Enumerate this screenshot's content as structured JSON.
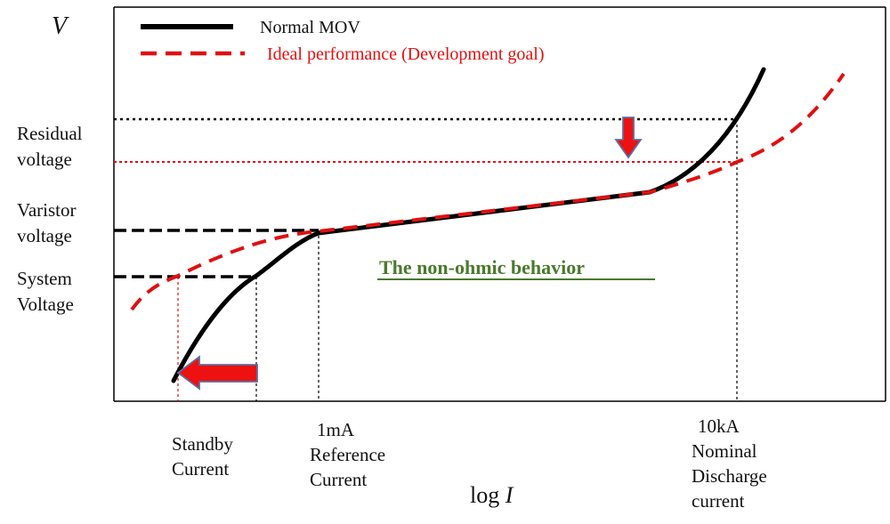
{
  "legend": {
    "normal": "Normal MOV",
    "ideal": "Ideal performance (Development goal)"
  },
  "axis": {
    "y_var": "V",
    "x_label_prefix": "log ",
    "x_label_var": "I"
  },
  "y_labels": {
    "residual": [
      "Residual",
      "voltage"
    ],
    "varistor": [
      "Varistor",
      "voltage"
    ],
    "system": [
      "System",
      "Voltage"
    ]
  },
  "x_labels": {
    "standby": [
      "Standby",
      "Current"
    ],
    "reference": [
      "1mA",
      "Reference",
      "Current"
    ],
    "nominal": [
      "10kA",
      "Nominal",
      "Discharge",
      "current"
    ]
  },
  "center_note": "The non-ohmic behavior",
  "colors": {
    "normal": "#000000",
    "ideal": "#e01010",
    "note": "#4a7a2c",
    "arrow_fill": "#ee1111",
    "arrow_stroke": "#5a6fa0"
  }
}
